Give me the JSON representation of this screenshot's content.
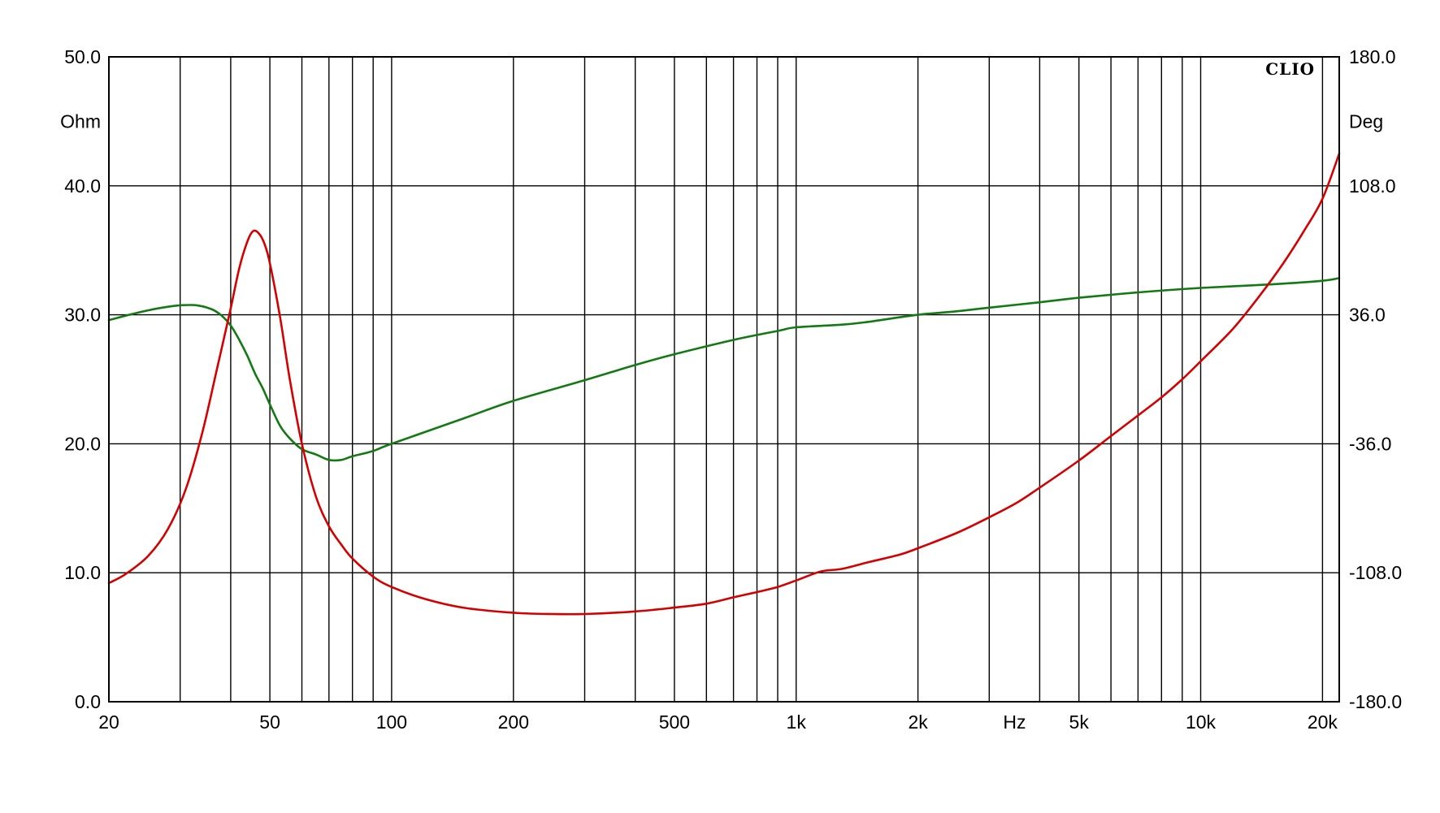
{
  "chart_data": {
    "type": "line",
    "brand": "CLIO",
    "x_scale": "log",
    "xlim": [
      20,
      22000
    ],
    "x_unit": "Hz",
    "x_ticks": [
      20,
      50,
      100,
      200,
      500,
      1000,
      2000,
      5000,
      10000,
      20000
    ],
    "x_tick_labels": [
      "20",
      "50",
      "100",
      "200",
      "500",
      "1k",
      "2k",
      "5k",
      "10k",
      "20k"
    ],
    "x_grid": [
      20,
      30,
      40,
      50,
      60,
      70,
      80,
      90,
      100,
      200,
      300,
      400,
      500,
      600,
      700,
      800,
      900,
      1000,
      2000,
      3000,
      4000,
      5000,
      6000,
      7000,
      8000,
      9000,
      10000,
      20000
    ],
    "y_left": {
      "unit": "Ohm",
      "ylim": [
        0,
        50
      ],
      "ticks": [
        0,
        10,
        20,
        30,
        40,
        50
      ],
      "tick_labels": [
        "0.0",
        "10.0",
        "20.0",
        "30.0",
        "40.0",
        "50.0"
      ]
    },
    "y_right": {
      "unit": "Deg",
      "ylim": [
        -180,
        180
      ],
      "ticks": [
        -180,
        -108,
        -36,
        36,
        108,
        180
      ],
      "tick_labels": [
        "-180.0",
        "-108.0",
        "-36.0",
        "36.0",
        "108.0",
        "180.0"
      ]
    },
    "grid": true,
    "series": [
      {
        "color": "#d40000",
        "axis": "left",
        "points": [
          [
            20,
            9.2
          ],
          [
            22,
            9.9
          ],
          [
            25,
            11.3
          ],
          [
            28,
            13.4
          ],
          [
            31,
            16.5
          ],
          [
            34,
            20.8
          ],
          [
            37,
            25.8
          ],
          [
            40,
            30.5
          ],
          [
            42,
            33.6
          ],
          [
            44,
            35.7
          ],
          [
            45.5,
            36.5
          ],
          [
            47,
            36.3
          ],
          [
            48.5,
            35.5
          ],
          [
            50,
            34.0
          ],
          [
            53,
            29.8
          ],
          [
            56,
            25.0
          ],
          [
            60,
            20.0
          ],
          [
            65,
            15.9
          ],
          [
            70,
            13.6
          ],
          [
            75,
            12.2
          ],
          [
            80,
            11.1
          ],
          [
            90,
            9.7
          ],
          [
            100,
            8.9
          ],
          [
            120,
            8.0
          ],
          [
            150,
            7.3
          ],
          [
            200,
            6.9
          ],
          [
            250,
            6.8
          ],
          [
            300,
            6.8
          ],
          [
            400,
            7.0
          ],
          [
            500,
            7.3
          ],
          [
            600,
            7.6
          ],
          [
            700,
            8.1
          ],
          [
            800,
            8.5
          ],
          [
            900,
            8.9
          ],
          [
            1000,
            9.4
          ],
          [
            1150,
            10.1
          ],
          [
            1300,
            10.3
          ],
          [
            1500,
            10.8
          ],
          [
            1800,
            11.4
          ],
          [
            2000,
            11.9
          ],
          [
            2500,
            13.1
          ],
          [
            3000,
            14.3
          ],
          [
            3500,
            15.4
          ],
          [
            4000,
            16.6
          ],
          [
            5000,
            18.7
          ],
          [
            6000,
            20.6
          ],
          [
            7000,
            22.2
          ],
          [
            8000,
            23.6
          ],
          [
            9000,
            25.0
          ],
          [
            10000,
            26.4
          ],
          [
            12000,
            28.9
          ],
          [
            14000,
            31.5
          ],
          [
            16000,
            34.0
          ],
          [
            18000,
            36.5
          ],
          [
            20000,
            39.0
          ],
          [
            22000,
            42.5
          ]
        ]
      },
      {
        "color": "#137a13",
        "axis": "right",
        "points": [
          [
            20,
            33
          ],
          [
            22,
            35.5
          ],
          [
            25,
            38.5
          ],
          [
            28,
            40.5
          ],
          [
            30,
            41.3
          ],
          [
            33,
            41.3
          ],
          [
            36,
            39
          ],
          [
            38,
            35.5
          ],
          [
            40,
            30
          ],
          [
            42,
            22
          ],
          [
            44,
            13
          ],
          [
            46,
            3
          ],
          [
            48,
            -5
          ],
          [
            50,
            -14
          ],
          [
            53,
            -26
          ],
          [
            56,
            -33
          ],
          [
            60,
            -39
          ],
          [
            65,
            -42
          ],
          [
            70,
            -45
          ],
          [
            75,
            -45
          ],
          [
            80,
            -43
          ],
          [
            90,
            -40
          ],
          [
            100,
            -36
          ],
          [
            150,
            -22
          ],
          [
            200,
            -12
          ],
          [
            300,
            -0.5
          ],
          [
            400,
            8
          ],
          [
            500,
            14
          ],
          [
            700,
            22
          ],
          [
            900,
            27
          ],
          [
            1000,
            29
          ],
          [
            1300,
            30.5
          ],
          [
            1500,
            32
          ],
          [
            2000,
            36
          ],
          [
            2500,
            38
          ],
          [
            3000,
            40
          ],
          [
            4000,
            43
          ],
          [
            5000,
            45.5
          ],
          [
            7000,
            48.5
          ],
          [
            10000,
            51
          ],
          [
            15000,
            53
          ],
          [
            20000,
            55
          ],
          [
            22000,
            56.5
          ]
        ]
      }
    ]
  }
}
